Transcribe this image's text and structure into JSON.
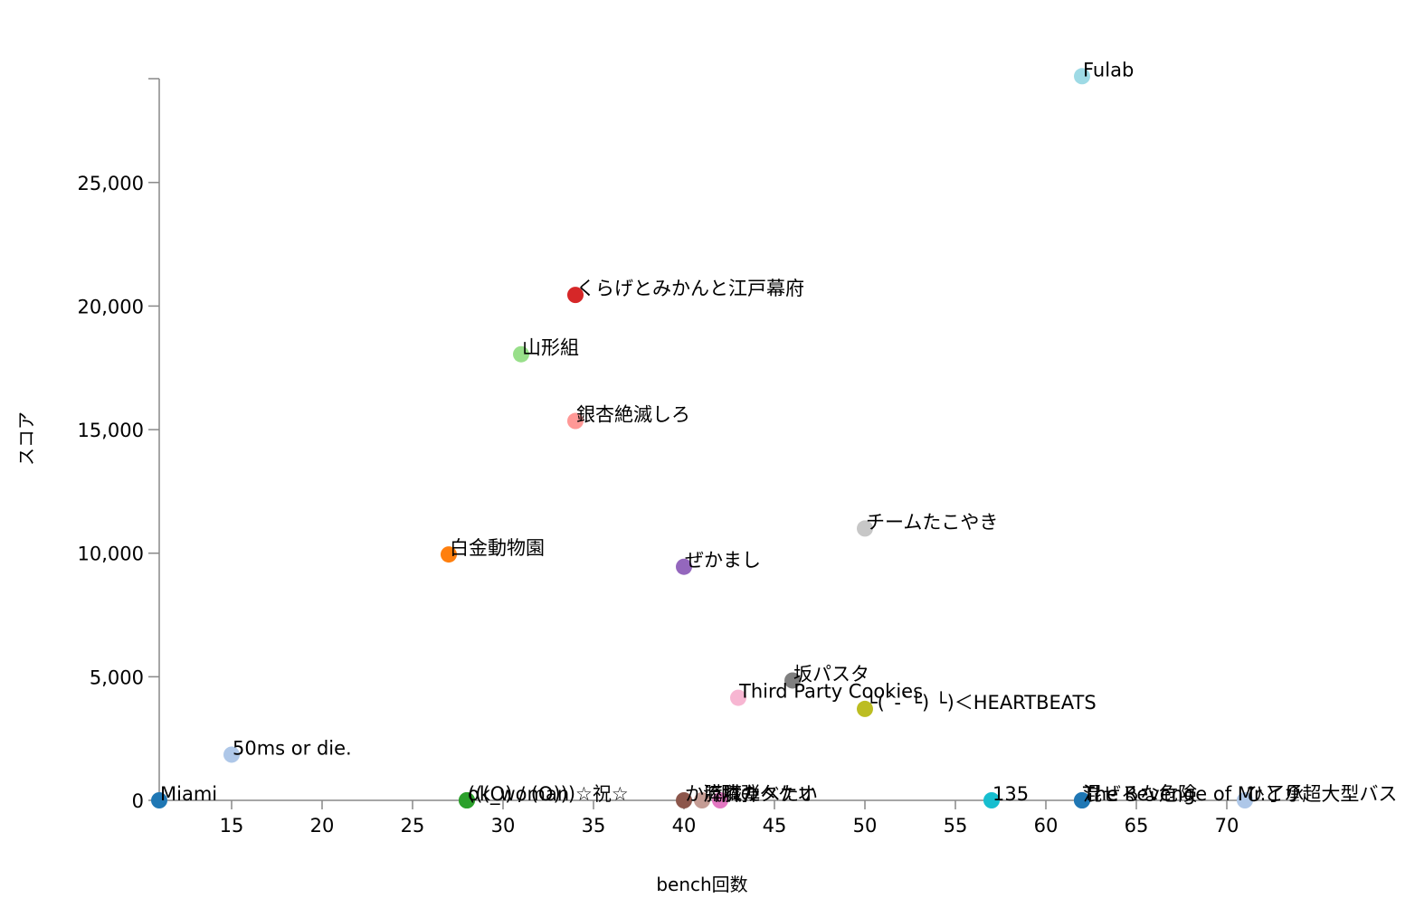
{
  "chart_data": {
    "type": "scatter",
    "xlabel": "bench回数",
    "ylabel": "スコア",
    "xlim": [
      11,
      74
    ],
    "ylim": [
      0,
      29200
    ],
    "x_ticks": [
      15,
      20,
      25,
      30,
      35,
      40,
      45,
      50,
      55,
      60,
      65,
      70
    ],
    "y_ticks": [
      0,
      5000,
      10000,
      15000,
      20000,
      25000
    ],
    "grid": false,
    "legend": "none",
    "points": [
      {
        "label": "Fulab",
        "x": 62,
        "y": 29300,
        "color": "#9edae5"
      },
      {
        "label": "くらげとみかんと江戸幕府",
        "x": 34,
        "y": 20450,
        "color": "#d62728"
      },
      {
        "label": "山形組",
        "x": 31,
        "y": 18050,
        "color": "#98df8a"
      },
      {
        "label": "銀杏絶滅しろ",
        "x": 34,
        "y": 15350,
        "color": "#ff9896"
      },
      {
        "label": "チームたこやき",
        "x": 50,
        "y": 11000,
        "color": "#c7c7c7"
      },
      {
        "label": "白金動物園",
        "x": 27,
        "y": 9950,
        "color": "#ff7f0e"
      },
      {
        "label": "ぜかまし",
        "x": 40,
        "y": 9450,
        "color": "#9467bd"
      },
      {
        "label": "坂パスタ",
        "x": 46,
        "y": 4850,
        "color": "#7f7f7f"
      },
      {
        "label": "Third Party Cookies",
        "x": 43,
        "y": 4150,
        "color": "#f7b6d2"
      },
      {
        "label": "└(´-`└) └)＜HEARTBEATS",
        "x": 50,
        "y": 3700,
        "color": "#bcbd22"
      },
      {
        "label": "50ms or die.",
        "x": 15,
        "y": 1850,
        "color": "#aec7e8"
      },
      {
        "label": "Miami",
        "x": 11,
        "y": 0,
        "color": "#1f77b4"
      },
      {
        "label": "ok_woman",
        "x": 28,
        "y": 0,
        "color": "#2ca02c"
      },
      {
        "label": "(((O) / (O)))☆祝☆",
        "x": 28,
        "y": 0,
        "color": "#2ca02c"
      },
      {
        "label": "か膵臓たべたい",
        "x": 40,
        "y": 0,
        "color": "#8c564b"
      },
      {
        "label": "流れ弾",
        "x": 41,
        "y": 0,
        "color": "#c49c94"
      },
      {
        "label": "隣のタケオ",
        "x": 42,
        "y": 0,
        "color": "#e377c2"
      },
      {
        "label": "135",
        "x": 57,
        "y": 0,
        "color": "#17becf"
      },
      {
        "label": "The Revenge of Mr.了承",
        "x": 62,
        "y": 0,
        "color": "#1f77b4"
      },
      {
        "label": "混ぜるな危険",
        "x": 62,
        "y": 0,
        "color": "#1f77b4"
      },
      {
        "label": "ひとり超大型バス",
        "x": 71,
        "y": 0,
        "color": "#aec7e8"
      }
    ]
  }
}
